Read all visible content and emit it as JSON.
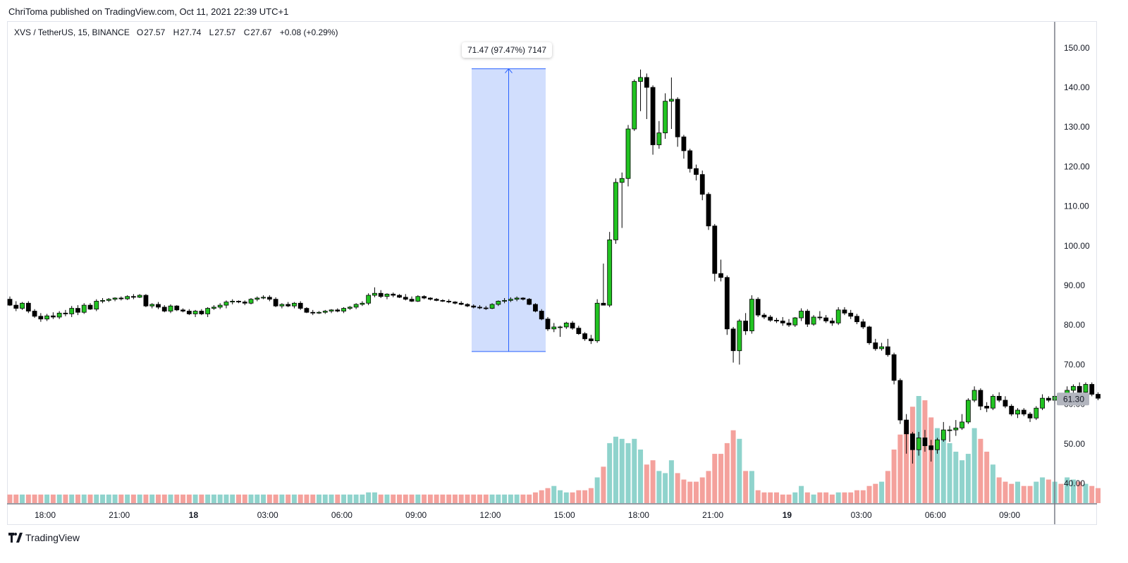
{
  "header": {
    "publisher_line": "ChriToma published on TradingView.com, Oct 11, 2021 22:39 UTC+1"
  },
  "legend": {
    "symbol": "XVS / TetherUS, 15, BINANCE",
    "open_label": "O",
    "open": "27.57",
    "high_label": "H",
    "high": "27.74",
    "low_label": "L",
    "low": "27.57",
    "close_label": "C",
    "close": "27.67",
    "change": "+0.08 (+0.29%)"
  },
  "measure": {
    "label": "71.47 (97.47%) 7147"
  },
  "price_badge": "61.30",
  "footer": {
    "brand": "TradingView"
  },
  "colors": {
    "up": "#22c322",
    "down": "#000000",
    "vol_up": "#8fd3cc",
    "vol_down": "#f4a19c",
    "measure_fill": "#d1defd",
    "measure_line": "#2962ff",
    "badge": "#b2b5be"
  },
  "chart_data": {
    "type": "candlestick",
    "y_axis": {
      "min": 35,
      "max": 155,
      "ticks": [
        "40.00",
        "50.00",
        "60.00",
        "70.00",
        "80.00",
        "90.00",
        "100.00",
        "110.00",
        "120.00",
        "130.00",
        "140.00",
        "150.00"
      ]
    },
    "x_axis": {
      "labels": [
        {
          "text": "18:00",
          "bold": false,
          "idx": 5.7
        },
        {
          "text": "21:00",
          "bold": false,
          "idx": 17.7
        },
        {
          "text": "18",
          "bold": true,
          "idx": 29.7
        },
        {
          "text": "03:00",
          "bold": false,
          "idx": 41.7
        },
        {
          "text": "06:00",
          "bold": false,
          "idx": 53.7
        },
        {
          "text": "09:00",
          "bold": false,
          "idx": 65.7
        },
        {
          "text": "12:00",
          "bold": false,
          "idx": 77.7
        },
        {
          "text": "15:00",
          "bold": false,
          "idx": 89.7
        },
        {
          "text": "18:00",
          "bold": false,
          "idx": 101.7
        },
        {
          "text": "21:00",
          "bold": false,
          "idx": 113.7
        },
        {
          "text": "19",
          "bold": true,
          "idx": 125.7
        },
        {
          "text": "03:00",
          "bold": false,
          "idx": 137.7
        },
        {
          "text": "06:00",
          "bold": false,
          "idx": 149.7
        },
        {
          "text": "09:00",
          "bold": false,
          "idx": 161.7
        }
      ]
    },
    "volume_scale_max": 100,
    "candles": [
      [
        86.5,
        87.2,
        84.8,
        85.0,
        4
      ],
      [
        85.0,
        86.0,
        83.5,
        84.2,
        4
      ],
      [
        84.2,
        85.8,
        83.8,
        85.5,
        4
      ],
      [
        85.5,
        86.0,
        83.0,
        83.5,
        4
      ],
      [
        83.5,
        84.0,
        81.8,
        82.2,
        4
      ],
      [
        82.2,
        83.0,
        80.8,
        81.5,
        4
      ],
      [
        81.5,
        82.8,
        81.0,
        82.3,
        4
      ],
      [
        82.3,
        83.2,
        81.5,
        82.0,
        4
      ],
      [
        82.0,
        83.5,
        81.5,
        83.0,
        4
      ],
      [
        83.0,
        83.8,
        82.2,
        82.8,
        4
      ],
      [
        82.8,
        84.8,
        82.0,
        84.2,
        4
      ],
      [
        84.2,
        85.0,
        82.5,
        83.2,
        4
      ],
      [
        83.2,
        85.5,
        82.8,
        85.0,
        4
      ],
      [
        85.0,
        85.5,
        83.8,
        84.0,
        4
      ],
      [
        84.0,
        86.5,
        83.5,
        86.0,
        4
      ],
      [
        86.0,
        86.8,
        85.5,
        86.2,
        4
      ],
      [
        86.2,
        86.8,
        85.8,
        86.5,
        4
      ],
      [
        86.5,
        87.0,
        86.0,
        86.8,
        4
      ],
      [
        86.8,
        87.2,
        86.2,
        86.6,
        4
      ],
      [
        86.6,
        87.5,
        86.3,
        87.2,
        4
      ],
      [
        87.2,
        87.8,
        86.5,
        87.0,
        4
      ],
      [
        87.0,
        87.8,
        86.8,
        87.5,
        4
      ],
      [
        87.5,
        87.8,
        84.5,
        84.8,
        4
      ],
      [
        84.8,
        85.5,
        84.2,
        85.2,
        4
      ],
      [
        85.2,
        85.8,
        84.0,
        84.5,
        4
      ],
      [
        84.5,
        85.0,
        83.2,
        83.5,
        4
      ],
      [
        83.5,
        85.2,
        83.0,
        84.8,
        4
      ],
      [
        84.8,
        85.0,
        83.5,
        83.8,
        4
      ],
      [
        83.8,
        84.2,
        83.2,
        83.5,
        4
      ],
      [
        83.5,
        84.0,
        82.5,
        82.8,
        4
      ],
      [
        82.8,
        83.8,
        82.0,
        83.5,
        4
      ],
      [
        83.5,
        84.0,
        82.5,
        82.8,
        4
      ],
      [
        82.8,
        84.5,
        82.0,
        84.2,
        4
      ],
      [
        84.2,
        85.0,
        83.8,
        84.5,
        4
      ],
      [
        84.5,
        85.5,
        84.0,
        85.0,
        4
      ],
      [
        85.0,
        86.2,
        84.2,
        85.8,
        4
      ],
      [
        85.8,
        86.5,
        85.2,
        86.0,
        4
      ],
      [
        86.0,
        86.2,
        85.5,
        85.8,
        4
      ],
      [
        85.8,
        86.2,
        85.0,
        85.5,
        4
      ],
      [
        85.5,
        86.8,
        85.2,
        86.5,
        4
      ],
      [
        86.5,
        87.2,
        86.0,
        86.8,
        4
      ],
      [
        86.8,
        87.5,
        86.5,
        87.0,
        4
      ],
      [
        87.0,
        87.5,
        86.0,
        86.5,
        4
      ],
      [
        86.5,
        87.0,
        84.5,
        84.8,
        4
      ],
      [
        84.8,
        85.5,
        84.2,
        85.2,
        4
      ],
      [
        85.2,
        85.8,
        84.5,
        84.8,
        4
      ],
      [
        84.8,
        85.8,
        84.2,
        85.5,
        4
      ],
      [
        85.5,
        86.0,
        83.8,
        84.2,
        4
      ],
      [
        84.2,
        84.5,
        83.0,
        83.2,
        4
      ],
      [
        83.2,
        83.8,
        82.5,
        83.0,
        4
      ],
      [
        83.0,
        83.5,
        82.8,
        83.2,
        4
      ],
      [
        83.2,
        83.8,
        82.8,
        83.5,
        4
      ],
      [
        83.5,
        84.0,
        83.0,
        83.8,
        4
      ],
      [
        83.8,
        84.2,
        83.2,
        83.5,
        4
      ],
      [
        83.5,
        84.5,
        83.0,
        84.2,
        4
      ],
      [
        84.2,
        84.8,
        83.8,
        84.5,
        4
      ],
      [
        84.5,
        85.5,
        84.0,
        85.2,
        4
      ],
      [
        85.2,
        86.0,
        84.8,
        85.5,
        4
      ],
      [
        85.5,
        88.0,
        85.0,
        87.5,
        5
      ],
      [
        87.5,
        89.5,
        87.0,
        88.0,
        5
      ],
      [
        88.0,
        88.8,
        86.8,
        87.2,
        4
      ],
      [
        87.2,
        88.0,
        86.5,
        87.8,
        4
      ],
      [
        87.8,
        88.2,
        87.0,
        87.5,
        4
      ],
      [
        87.5,
        87.8,
        86.8,
        87.0,
        4
      ],
      [
        87.0,
        87.8,
        86.2,
        86.5,
        4
      ],
      [
        86.5,
        87.2,
        85.8,
        86.0,
        4
      ],
      [
        86.0,
        87.5,
        85.8,
        87.2,
        4
      ],
      [
        87.2,
        87.5,
        86.5,
        86.8,
        4
      ],
      [
        86.8,
        87.0,
        86.2,
        86.5,
        4
      ],
      [
        86.5,
        86.8,
        86.0,
        86.2,
        4
      ],
      [
        86.2,
        86.5,
        85.8,
        86.0,
        4
      ],
      [
        86.0,
        86.5,
        85.5,
        85.8,
        4
      ],
      [
        85.8,
        86.0,
        85.2,
        85.5,
        4
      ],
      [
        85.5,
        86.0,
        85.0,
        85.2,
        4
      ],
      [
        85.2,
        85.5,
        84.5,
        84.8,
        4
      ],
      [
        84.8,
        85.2,
        84.2,
        84.5,
        4
      ],
      [
        84.5,
        85.0,
        84.0,
        84.3,
        4
      ],
      [
        84.3,
        84.8,
        83.8,
        84.2,
        4
      ],
      [
        84.2,
        85.5,
        84.0,
        85.2,
        4
      ],
      [
        85.2,
        86.2,
        84.8,
        86.0,
        4
      ],
      [
        86.0,
        86.8,
        85.5,
        86.2,
        4
      ],
      [
        86.2,
        87.0,
        85.8,
        86.5,
        4
      ],
      [
        86.5,
        87.2,
        86.0,
        86.8,
        4
      ],
      [
        86.8,
        87.0,
        86.2,
        86.5,
        4
      ],
      [
        86.5,
        86.8,
        85.0,
        85.2,
        4
      ],
      [
        85.2,
        85.5,
        83.2,
        83.5,
        5
      ],
      [
        83.5,
        84.0,
        81.2,
        81.5,
        6
      ],
      [
        81.5,
        82.0,
        78.5,
        79.0,
        7
      ],
      [
        79.0,
        80.5,
        78.2,
        79.5,
        8
      ],
      [
        79.5,
        79.8,
        77.0,
        79.5,
        6
      ],
      [
        79.5,
        80.8,
        79.0,
        80.5,
        5
      ],
      [
        80.5,
        81.0,
        78.8,
        79.2,
        5
      ],
      [
        79.2,
        79.8,
        77.5,
        77.8,
        6
      ],
      [
        77.8,
        78.2,
        76.0,
        76.5,
        6
      ],
      [
        76.5,
        77.5,
        75.2,
        76.0,
        7
      ],
      [
        76.0,
        86.5,
        75.5,
        85.5,
        12
      ],
      [
        85.5,
        95.5,
        85.0,
        85.0,
        17
      ],
      [
        85.0,
        103.5,
        84.5,
        101.5,
        28
      ],
      [
        101.5,
        117.0,
        100.5,
        116.0,
        31
      ],
      [
        116.0,
        118.5,
        104.5,
        117.0,
        30
      ],
      [
        117.0,
        130.5,
        115.0,
        129.5,
        28
      ],
      [
        129.5,
        142.0,
        129.0,
        141.5,
        30
      ],
      [
        141.5,
        144.5,
        134.0,
        142.5,
        25
      ],
      [
        142.5,
        143.5,
        132.0,
        140.0,
        18
      ],
      [
        140.0,
        140.5,
        123.0,
        125.5,
        20
      ],
      [
        125.5,
        131.5,
        124.5,
        128.5,
        15
      ],
      [
        128.5,
        138.5,
        127.0,
        136.5,
        14
      ],
      [
        136.5,
        142.5,
        129.5,
        137.0,
        20
      ],
      [
        137.0,
        137.5,
        125.0,
        127.5,
        14
      ],
      [
        127.5,
        128.0,
        122.0,
        124.0,
        11
      ],
      [
        124.0,
        124.5,
        118.5,
        119.5,
        10
      ],
      [
        119.5,
        120.5,
        116.5,
        118.0,
        10
      ],
      [
        118.0,
        119.0,
        111.5,
        113.0,
        12
      ],
      [
        113.0,
        113.5,
        104.0,
        105.0,
        15
      ],
      [
        105.0,
        105.5,
        91.0,
        93.0,
        23
      ],
      [
        93.0,
        96.5,
        91.0,
        92.0,
        23
      ],
      [
        92.0,
        92.5,
        77.5,
        79.0,
        28
      ],
      [
        79.0,
        79.5,
        70.5,
        73.5,
        34
      ],
      [
        73.5,
        81.5,
        70.0,
        81.0,
        30
      ],
      [
        81.0,
        83.0,
        77.5,
        78.5,
        15
      ],
      [
        78.5,
        87.5,
        77.8,
        86.5,
        15
      ],
      [
        86.5,
        87.0,
        82.0,
        82.5,
        6
      ],
      [
        82.5,
        83.0,
        81.5,
        82.0,
        5
      ],
      [
        82.0,
        82.5,
        80.8,
        81.2,
        5
      ],
      [
        81.2,
        81.8,
        80.5,
        81.0,
        5
      ],
      [
        81.0,
        82.0,
        79.8,
        80.5,
        4
      ],
      [
        80.5,
        81.5,
        79.5,
        80.0,
        4
      ],
      [
        80.0,
        82.0,
        79.5,
        81.8,
        5
      ],
      [
        81.8,
        84.2,
        81.0,
        83.5,
        8
      ],
      [
        83.5,
        84.0,
        79.5,
        80.2,
        5
      ],
      [
        80.2,
        82.5,
        79.8,
        82.0,
        4
      ],
      [
        82.0,
        83.5,
        81.2,
        81.8,
        5
      ],
      [
        81.8,
        82.5,
        80.5,
        81.0,
        5
      ],
      [
        81.0,
        81.8,
        79.8,
        80.5,
        4
      ],
      [
        80.5,
        84.5,
        80.0,
        83.8,
        5
      ],
      [
        83.8,
        84.5,
        82.5,
        83.0,
        5
      ],
      [
        83.0,
        83.8,
        81.5,
        82.2,
        5
      ],
      [
        82.2,
        82.8,
        80.2,
        80.8,
        6
      ],
      [
        80.8,
        81.5,
        79.0,
        79.5,
        6
      ],
      [
        79.5,
        79.8,
        75.0,
        75.5,
        8
      ],
      [
        75.5,
        76.5,
        73.5,
        74.0,
        9
      ],
      [
        74.0,
        75.5,
        73.5,
        74.5,
        10
      ],
      [
        74.5,
        76.5,
        72.0,
        72.5,
        15
      ],
      [
        72.5,
        73.0,
        65.0,
        66.0,
        25
      ],
      [
        66.0,
        66.5,
        55.0,
        56.0,
        32
      ],
      [
        56.0,
        57.5,
        47.5,
        52.5,
        38
      ],
      [
        52.5,
        53.0,
        45.0,
        48.5,
        45
      ],
      [
        48.5,
        53.0,
        47.0,
        51.5,
        50
      ],
      [
        51.5,
        53.5,
        48.0,
        49.5,
        48
      ],
      [
        49.5,
        51.0,
        45.5,
        48.5,
        40
      ],
      [
        48.5,
        51.5,
        47.5,
        51.0,
        35
      ],
      [
        51.0,
        55.5,
        50.5,
        53.5,
        33
      ],
      [
        53.5,
        54.5,
        50.5,
        53.5,
        28
      ],
      [
        53.5,
        56.0,
        52.0,
        54.0,
        24
      ],
      [
        54.0,
        57.5,
        53.5,
        55.5,
        20
      ],
      [
        55.5,
        61.5,
        55.0,
        61.0,
        23
      ],
      [
        61.0,
        64.5,
        60.5,
        63.5,
        35
      ],
      [
        63.5,
        64.0,
        58.5,
        59.5,
        30
      ],
      [
        59.5,
        60.5,
        58.0,
        59.0,
        24
      ],
      [
        59.0,
        62.5,
        58.5,
        62.0,
        18
      ],
      [
        62.0,
        63.0,
        60.5,
        61.0,
        12
      ],
      [
        61.0,
        62.0,
        59.0,
        59.5,
        10
      ],
      [
        59.5,
        60.0,
        57.0,
        57.5,
        9
      ],
      [
        57.5,
        59.0,
        56.5,
        58.5,
        10
      ],
      [
        58.5,
        59.0,
        57.0,
        57.5,
        8
      ],
      [
        57.5,
        58.0,
        55.5,
        56.5,
        8
      ],
      [
        56.5,
        59.5,
        56.0,
        59.0,
        10
      ],
      [
        59.0,
        62.5,
        58.5,
        61.5,
        12
      ],
      [
        61.5,
        62.0,
        60.5,
        61.0,
        11
      ],
      [
        61.0,
        62.5,
        60.0,
        62.0,
        10
      ],
      [
        62.0,
        62.5,
        60.5,
        61.0,
        9
      ],
      [
        61.0,
        64.5,
        60.5,
        63.5,
        12
      ],
      [
        63.5,
        65.0,
        62.5,
        64.5,
        11
      ],
      [
        64.5,
        65.5,
        62.5,
        63.0,
        10
      ],
      [
        63.0,
        65.5,
        62.5,
        65.0,
        9
      ],
      [
        65.0,
        65.5,
        62.0,
        62.5,
        8
      ],
      [
        62.5,
        63.0,
        61.0,
        61.5,
        7
      ]
    ],
    "volume_up_flags": "derived from candle direction"
  }
}
